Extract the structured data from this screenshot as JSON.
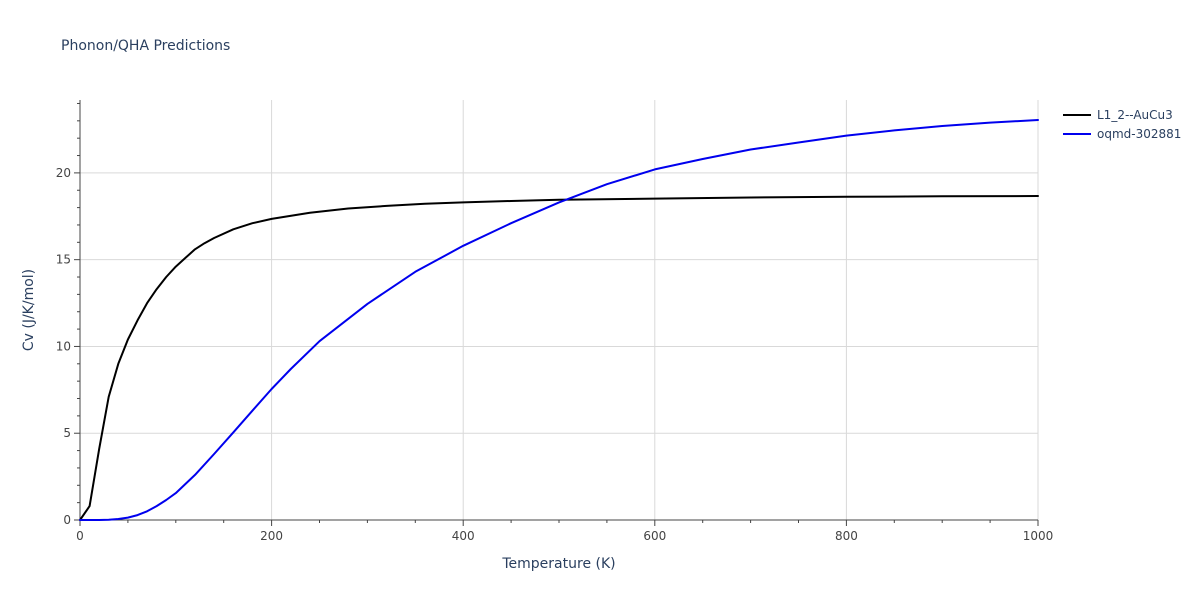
{
  "chart_data": {
    "type": "line",
    "title": "Phonon/QHA Predictions",
    "xlabel": "Temperature (K)",
    "ylabel": "Cv (J/K/mol)",
    "xlim": [
      0,
      1000
    ],
    "ylim": [
      0,
      24.2
    ],
    "xticks": [
      0,
      200,
      400,
      600,
      800,
      1000
    ],
    "yticks": [
      0,
      5,
      10,
      15,
      20
    ],
    "grid": true,
    "legend_position": "top-right",
    "series": [
      {
        "name": "L1_2--AuCu3",
        "color": "#000000",
        "x": [
          0,
          10,
          20,
          30,
          40,
          50,
          60,
          70,
          80,
          90,
          100,
          110,
          120,
          130,
          140,
          160,
          180,
          200,
          240,
          280,
          320,
          360,
          400,
          450,
          500,
          600,
          700,
          800,
          900,
          1000
        ],
        "y": [
          0,
          0.8,
          4.1,
          7.1,
          9.0,
          10.4,
          11.5,
          12.5,
          13.3,
          14.0,
          14.6,
          15.1,
          15.6,
          15.95,
          16.25,
          16.75,
          17.1,
          17.35,
          17.7,
          17.95,
          18.1,
          18.22,
          18.3,
          18.38,
          18.45,
          18.52,
          18.58,
          18.62,
          18.65,
          18.67
        ]
      },
      {
        "name": "oqmd-302881",
        "color": "#0000ee",
        "x": [
          0,
          20,
          30,
          40,
          50,
          60,
          70,
          80,
          90,
          100,
          120,
          140,
          160,
          180,
          200,
          220,
          250,
          300,
          350,
          400,
          450,
          500,
          550,
          600,
          650,
          700,
          750,
          800,
          850,
          900,
          950,
          1000
        ],
        "y": [
          0,
          0.0,
          0.02,
          0.06,
          0.14,
          0.28,
          0.5,
          0.8,
          1.15,
          1.55,
          2.6,
          3.8,
          5.05,
          6.3,
          7.55,
          8.7,
          10.3,
          12.45,
          14.3,
          15.8,
          17.1,
          18.3,
          19.35,
          20.2,
          20.8,
          21.35,
          21.75,
          22.15,
          22.45,
          22.7,
          22.9,
          23.05
        ]
      }
    ]
  }
}
